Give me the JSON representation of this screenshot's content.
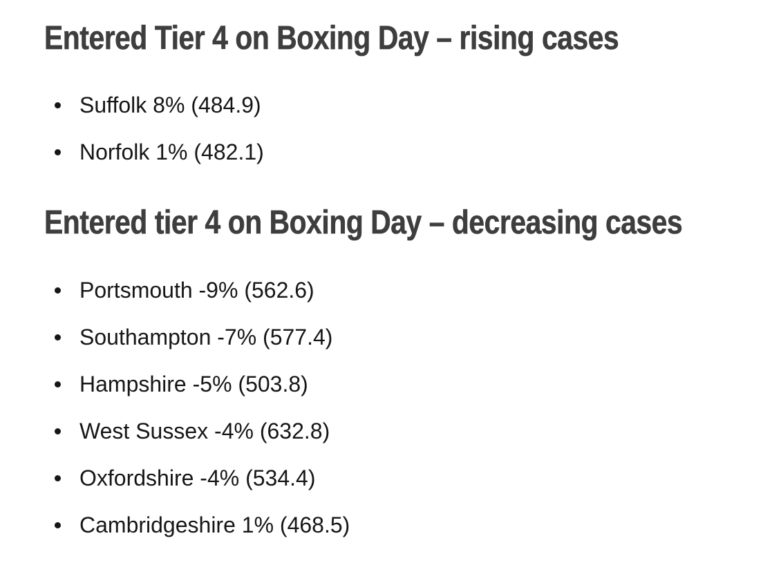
{
  "page": {
    "background": "#ffffff",
    "heading_color": "#3e3e3e",
    "body_text_color": "#161616"
  },
  "sections": [
    {
      "id": "rising",
      "heading": "Entered Tier 4 on Boxing Day – rising cases",
      "items": [
        {
          "text": "Suffolk 8% (484.9)",
          "area": "Suffolk",
          "change_pct": 8,
          "rate": 484.9
        },
        {
          "text": "Norfolk 1% (482.1)",
          "area": "Norfolk",
          "change_pct": 1,
          "rate": 482.1
        }
      ]
    },
    {
      "id": "decreasing",
      "heading": "Entered tier 4 on Boxing Day – decreasing cases",
      "items": [
        {
          "text": "Portsmouth -9% (562.6)",
          "area": "Portsmouth",
          "change_pct": -9,
          "rate": 562.6
        },
        {
          "text": "Southampton -7% (577.4)",
          "area": "Southampton",
          "change_pct": -7,
          "rate": 577.4
        },
        {
          "text": "Hampshire -5% (503.8)",
          "area": "Hampshire",
          "change_pct": -5,
          "rate": 503.8
        },
        {
          "text": "West Sussex -4% (632.8)",
          "area": "West Sussex",
          "change_pct": -4,
          "rate": 632.8
        },
        {
          "text": "Oxfordshire -4% (534.4)",
          "area": "Oxfordshire",
          "change_pct": -4,
          "rate": 534.4
        },
        {
          "text": "Cambridgeshire 1% (468.5)",
          "area": "Cambridgeshire",
          "change_pct": 1,
          "rate": 468.5
        }
      ]
    }
  ]
}
